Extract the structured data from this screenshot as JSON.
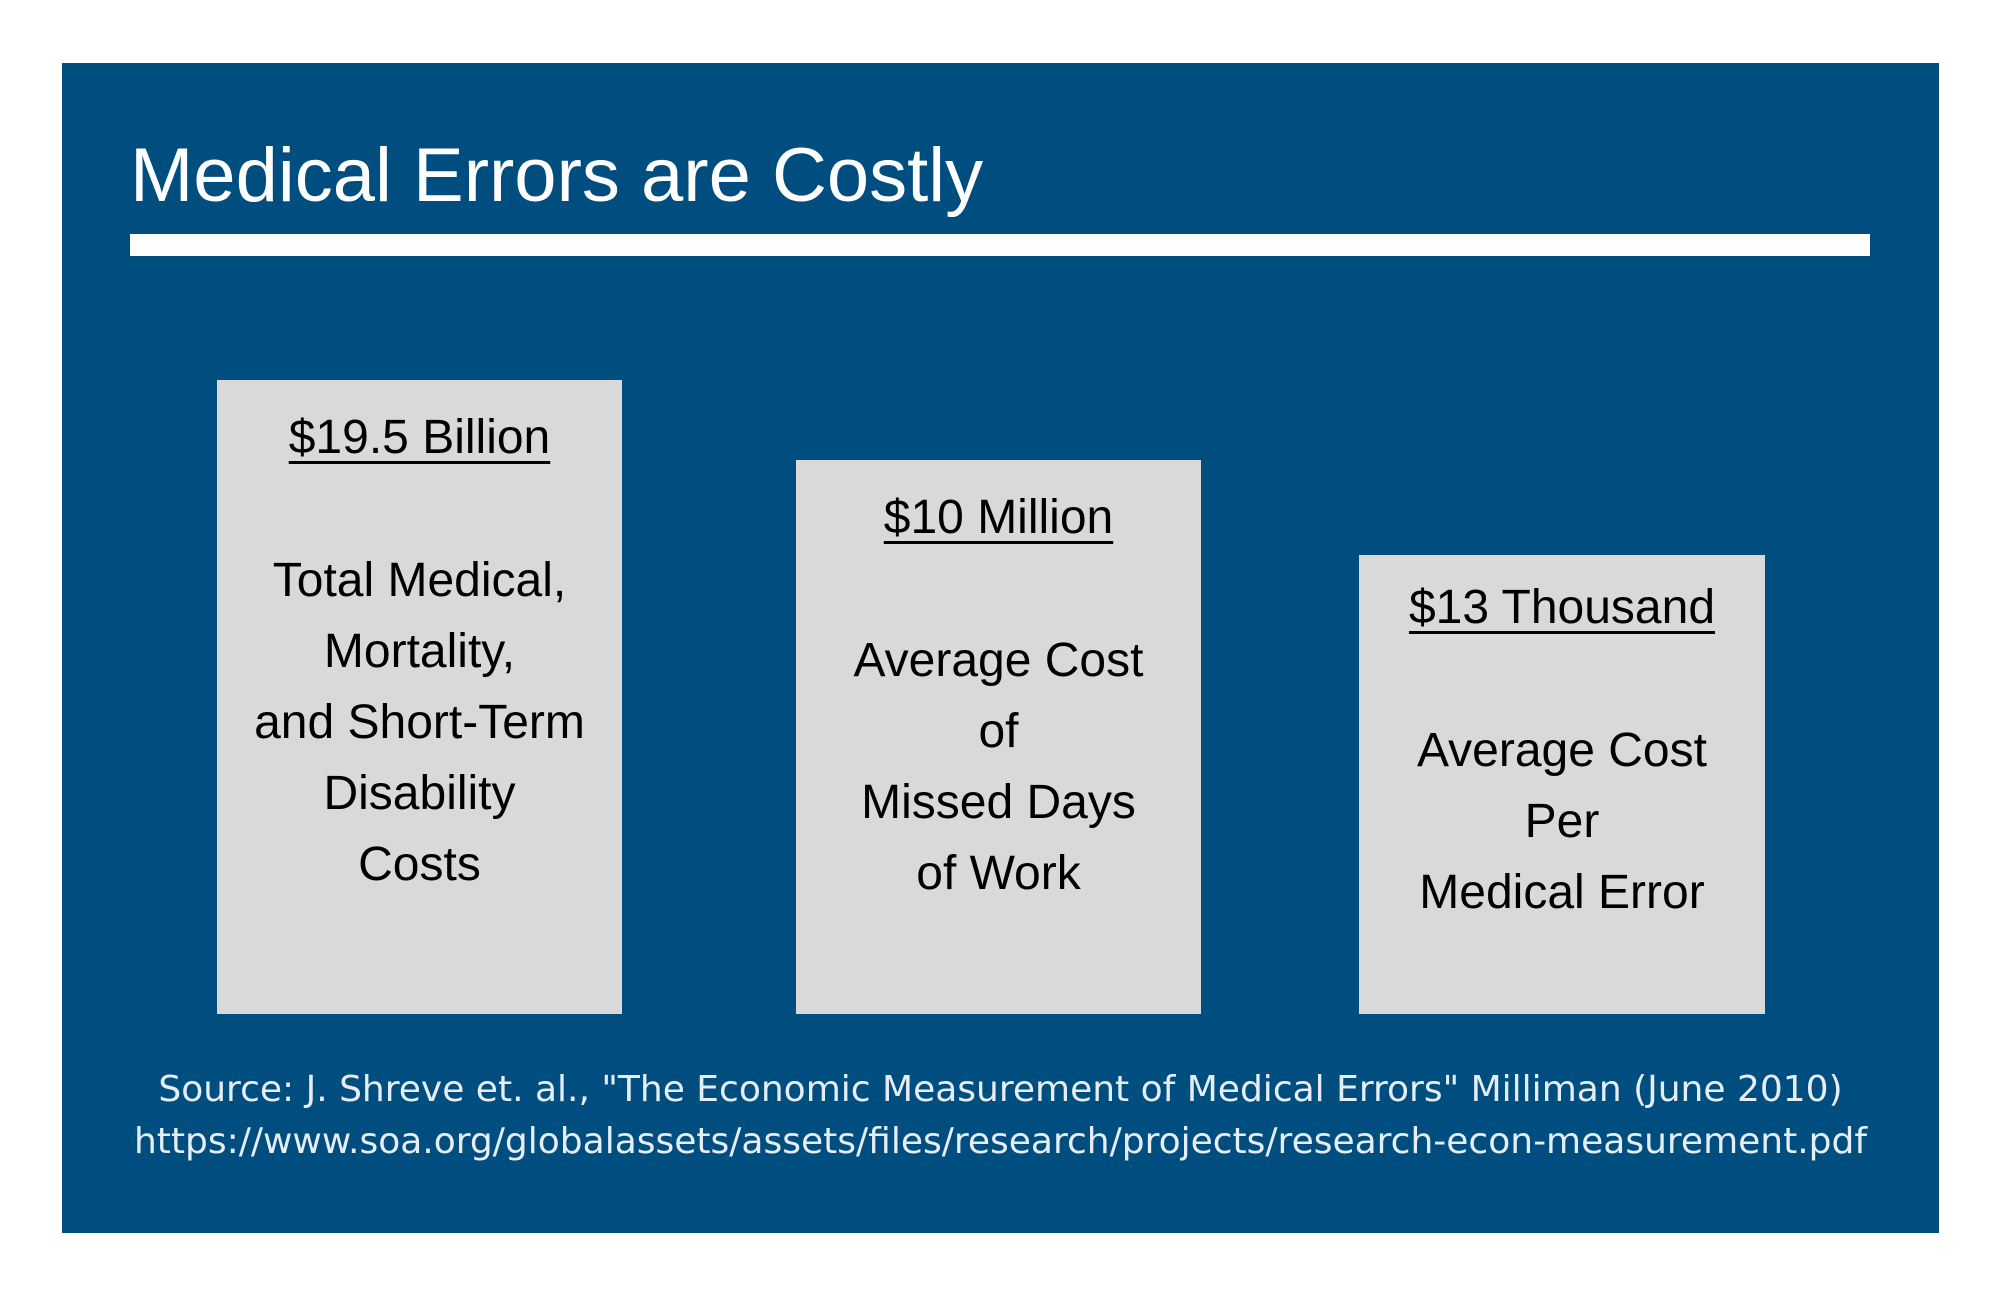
{
  "title": "Medical Errors are Costly",
  "colors": {
    "panel_background": "#004d80",
    "card_background": "#d9d9d9",
    "text_light": "#ffffff"
  },
  "cards": [
    {
      "amount": "$19.5 Billion",
      "lines": [
        "Total Medical,",
        "Mortality,",
        "and Short-Term",
        "Disability",
        "Costs"
      ]
    },
    {
      "amount": "$10 Million",
      "lines": [
        "Average Cost",
        "of",
        "Missed Days",
        "of Work"
      ]
    },
    {
      "amount": "$13 Thousand",
      "lines": [
        "Average Cost",
        "Per",
        "Medical Error"
      ]
    }
  ],
  "source": {
    "citation": "Source: J. Shreve et. al., \"The Economic Measurement of Medical Errors\" Milliman (June 2010)",
    "url": "https://www.soa.org/globalassets/assets/files/research/projects/research-econ-measurement.pdf"
  }
}
